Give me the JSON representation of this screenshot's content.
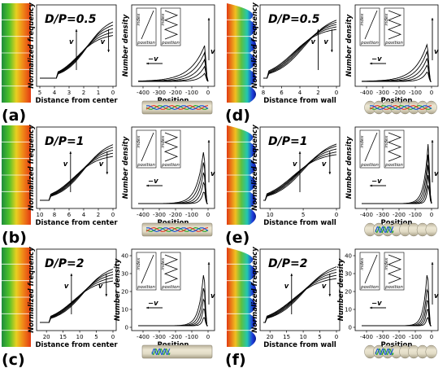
{
  "colors": {
    "heat_low": "#1e3cdc",
    "heat_mid": "#22c8b0",
    "heat_high": "#e23a12",
    "tube_fill": "#d8d2bc",
    "tube_edge": "#8a8470"
  },
  "panels": [
    {
      "id": "a",
      "label": "(a)",
      "ratio": "D/P=0.5",
      "wall": "straight",
      "freq": {
        "xlabel": "Distance from center",
        "ylabel": "Normalized frequency",
        "ticks": [
          "5",
          "4",
          "3",
          "2",
          "1",
          "0"
        ],
        "xmax": 5,
        "v_up_at": 2.5,
        "v_down_at": 0.3,
        "plateau": [
          0.7,
          0.76,
          0.83,
          0.9,
          0.97
        ],
        "onset": 3.8
      },
      "dens": {
        "xlabel": "Position",
        "ylabel": "Number density",
        "ticks": [
          "-400",
          "-300",
          "-200",
          "-100",
          "0"
        ],
        "yticks": [],
        "peak_x": -20,
        "heights": [
          0.12,
          0.22,
          0.32,
          0.42,
          0.52
        ],
        "spread": 140,
        "inset_labels": {
          "index": "index",
          "position": "position"
        },
        "minus_v": "−v",
        "v": "v"
      },
      "polymer": {
        "colors": [
          "#2aa82a",
          "#e83c2c",
          "#1c58d6"
        ]
      }
    },
    {
      "id": "b",
      "label": "(b)",
      "ratio": "D/P=1",
      "wall": "straight",
      "freq": {
        "xlabel": "Distance from center",
        "ylabel": "Normalized frequency",
        "ticks": [
          "10",
          "8",
          "6",
          "4",
          "2",
          "0"
        ],
        "xmax": 10,
        "v_up_at": 5.8,
        "v_down_at": 0.8,
        "plateau": [
          0.72,
          0.78,
          0.84,
          0.9,
          0.96
        ],
        "onset": 8.5
      },
      "dens": {
        "xlabel": "Position",
        "ylabel": "Number density",
        "ticks": [
          "-400",
          "-300",
          "-200",
          "-100",
          "0"
        ],
        "yticks": [],
        "peak_x": -25,
        "heights": [
          0.2,
          0.35,
          0.5,
          0.65,
          0.8
        ],
        "spread": 65,
        "inset_labels": {
          "index": "index",
          "position": "position"
        },
        "minus_v": "−v",
        "v": "v"
      },
      "polymer": {
        "colors": [
          "#2aa82a",
          "#e83c2c",
          "#1c58d6"
        ]
      }
    },
    {
      "id": "c",
      "label": "(c)",
      "ratio": "D/P=2",
      "wall": "straight",
      "freq": {
        "xlabel": "Distance from center",
        "ylabel": "Normalized frequency",
        "ticks": [
          "20",
          "15",
          "10",
          "5",
          "0"
        ],
        "xmax": 22,
        "v_up_at": 12.5,
        "v_down_at": 2.0,
        "plateau": [
          0.68,
          0.74,
          0.8,
          0.86,
          0.92
        ],
        "onset": 19
      },
      "dens": {
        "xlabel": "Position",
        "ylabel": "Number density",
        "ticks": [
          "-400",
          "-300",
          "-200",
          "-100",
          "0"
        ],
        "yticks": [
          "0",
          "10",
          "20",
          "30",
          "40"
        ],
        "peak_x": -25,
        "heights": [
          0.15,
          0.3,
          0.45,
          0.62,
          0.82
        ],
        "spread": 45,
        "inset_labels": {
          "index": "index",
          "position": "position"
        },
        "minus_v": "−v",
        "v": "v"
      },
      "polymer": {
        "colors": [
          "#2aa82a",
          "#1c58d6"
        ]
      }
    },
    {
      "id": "d",
      "label": "(d)",
      "ratio": "D/P=0.5",
      "wall": "corrugated",
      "freq": {
        "xlabel": "Distance from wall",
        "ylabel": "Normalized frequency",
        "ticks": [
          "8",
          "6",
          "4",
          "2",
          "0"
        ],
        "xmax": 8,
        "v_up_at": 2.0,
        "v_down_at": 0.5,
        "plateau": [
          0.8,
          0.85,
          0.9,
          0.95,
          1.0
        ],
        "onset": 7.5
      },
      "dens": {
        "xlabel": "Position",
        "ylabel": "Number density",
        "ticks": [
          "-400",
          "-300",
          "-200",
          "-100",
          "0"
        ],
        "yticks": [],
        "peak_x": -25,
        "heights": [
          0.15,
          0.25,
          0.35,
          0.45,
          0.55
        ],
        "spread": 120,
        "inset_labels": {
          "index": "index",
          "position": "position"
        },
        "minus_v": "−v",
        "v": "v"
      },
      "polymer": {
        "colors": [
          "#2aa82a",
          "#e83c2c",
          "#1c58d6"
        ]
      }
    },
    {
      "id": "e",
      "label": "(e)",
      "ratio": "D/P=1",
      "wall": "corrugated",
      "freq": {
        "xlabel": "Distance from wall",
        "ylabel": "Normalized frequency",
        "ticks": [
          "10",
          "5",
          "0"
        ],
        "xmax": 11,
        "v_up_at": 5.5,
        "v_down_at": 1.0,
        "plateau": [
          0.75,
          0.8,
          0.86,
          0.92,
          0.97
        ],
        "onset": 10.5
      },
      "dens": {
        "xlabel": "Position",
        "ylabel": "Number density",
        "ticks": [
          "-400",
          "-300",
          "-200",
          "-100",
          "0"
        ],
        "yticks": [],
        "peak_x": -20,
        "heights": [
          0.3,
          0.45,
          0.6,
          0.75,
          0.9
        ],
        "spread": 40,
        "inset_labels": {
          "index": "index",
          "position": "position"
        },
        "minus_v": "−v",
        "v": "v"
      },
      "polymer": {
        "colors": [
          "#2aa82a",
          "#1c58d6"
        ]
      }
    },
    {
      "id": "f",
      "label": "(f)",
      "ratio": "D/P=2",
      "wall": "corrugated",
      "freq": {
        "xlabel": "Distance from wall",
        "ylabel": "Normalized frequency",
        "ticks": [
          "20",
          "15",
          "10",
          "5",
          "0"
        ],
        "xmax": 22,
        "v_up_at": 13.5,
        "v_down_at": 2.0,
        "plateau": [
          0.72,
          0.78,
          0.84,
          0.9,
          0.96
        ],
        "onset": 21
      },
      "dens": {
        "xlabel": "Position",
        "ylabel": "Number density",
        "ticks": [
          "-400",
          "-300",
          "-200",
          "-100",
          "0"
        ],
        "yticks": [
          "0",
          "10",
          "20",
          "30",
          "40"
        ],
        "peak_x": -25,
        "heights": [
          0.15,
          0.3,
          0.45,
          0.62,
          0.85
        ],
        "spread": 35,
        "inset_labels": {
          "index": "index",
          "position": "position"
        },
        "minus_v": "−v",
        "v": "v"
      },
      "polymer": {
        "colors": [
          "#2aa82a",
          "#1c58d6"
        ]
      }
    }
  ]
}
